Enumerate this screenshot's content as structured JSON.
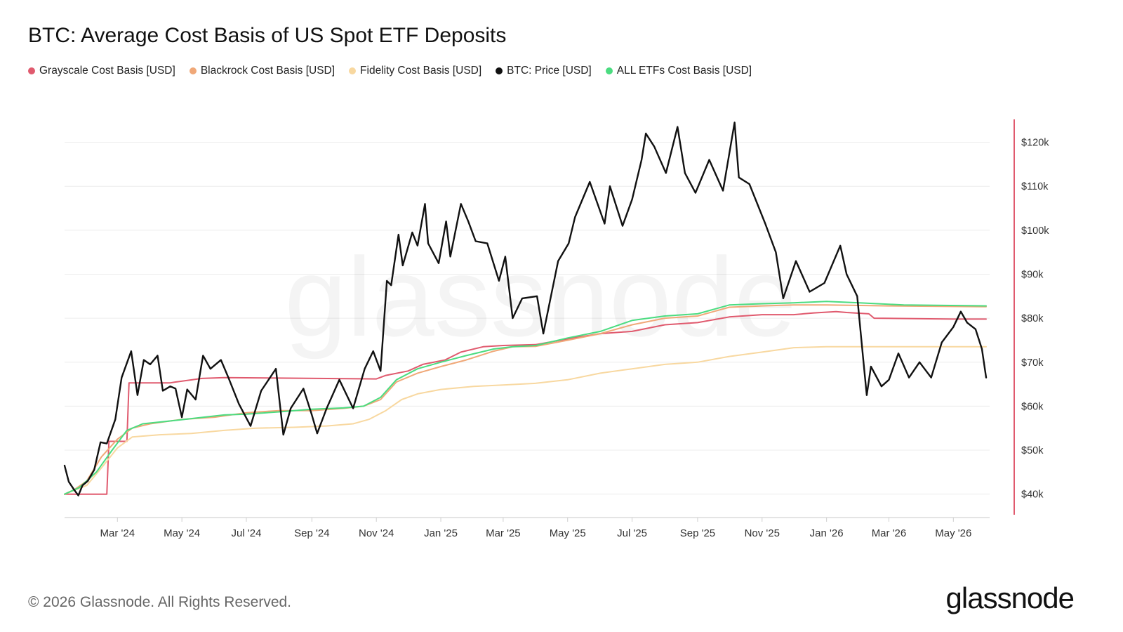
{
  "title": "BTC: Average Cost Basis of US Spot ETF Deposits",
  "footer": "© 2026 Glassnode. All Rights Reserved.",
  "logo": "glassnode",
  "watermark": "glassnode",
  "legend": [
    {
      "label": "Grayscale Cost Basis [USD]",
      "color": "#e05a6e"
    },
    {
      "label": "Blackrock Cost Basis [USD]",
      "color": "#f0a878"
    },
    {
      "label": "Fidelity Cost Basis [USD]",
      "color": "#f8d8a0"
    },
    {
      "label": "BTC: Price [USD]",
      "color": "#111111"
    },
    {
      "label": "ALL ETFs Cost Basis [USD]",
      "color": "#4bdc80"
    }
  ],
  "chart_data": {
    "type": "line",
    "x_range": [
      "2024-01-11",
      "2026-06-01"
    ],
    "x_ticks": [
      {
        "date": "2024-03-01",
        "label": "Mar '24"
      },
      {
        "date": "2024-05-01",
        "label": "May '24"
      },
      {
        "date": "2024-07-01",
        "label": "Jul '24"
      },
      {
        "date": "2024-09-01",
        "label": "Sep '24"
      },
      {
        "date": "2024-11-01",
        "label": "Nov '24"
      },
      {
        "date": "2025-01-01",
        "label": "Jan '25"
      },
      {
        "date": "2025-03-01",
        "label": "Mar '25"
      },
      {
        "date": "2025-05-01",
        "label": "May '25"
      },
      {
        "date": "2025-07-01",
        "label": "Jul '25"
      },
      {
        "date": "2025-09-01",
        "label": "Sep '25"
      },
      {
        "date": "2025-11-01",
        "label": "Nov '25"
      },
      {
        "date": "2026-01-01",
        "label": "Jan '26"
      },
      {
        "date": "2026-03-01",
        "label": "Mar '26"
      },
      {
        "date": "2026-05-01",
        "label": "May '26"
      }
    ],
    "y_ticks": [
      {
        "value": 40000,
        "label": "$40k"
      },
      {
        "value": 50000,
        "label": "$50k"
      },
      {
        "value": 60000,
        "label": "$60k"
      },
      {
        "value": 70000,
        "label": "$70k"
      },
      {
        "value": 80000,
        "label": "$80k"
      },
      {
        "value": 90000,
        "label": "$90k"
      },
      {
        "value": 100000,
        "label": "$100k"
      },
      {
        "value": 110000,
        "label": "$110k"
      },
      {
        "value": 120000,
        "label": "$120k"
      }
    ],
    "ylim": [
      35000,
      126000
    ],
    "y_axis_side": "right",
    "grid": "horizontal",
    "series": [
      {
        "name": "Grayscale Cost Basis [USD]",
        "color": "#e05a6e",
        "points": [
          [
            "2024-01-11",
            40000
          ],
          [
            "2024-02-20",
            40000
          ],
          [
            "2024-02-22",
            52000
          ],
          [
            "2024-03-10",
            52000
          ],
          [
            "2024-03-12",
            65300
          ],
          [
            "2024-04-20",
            65300
          ],
          [
            "2024-04-25",
            65500
          ],
          [
            "2024-05-20",
            66300
          ],
          [
            "2024-06-10",
            66500
          ],
          [
            "2024-11-01",
            66200
          ],
          [
            "2024-11-10",
            67000
          ],
          [
            "2024-12-01",
            68000
          ],
          [
            "2024-12-15",
            69500
          ],
          [
            "2025-01-05",
            70500
          ],
          [
            "2025-01-20",
            72300
          ],
          [
            "2025-02-10",
            73500
          ],
          [
            "2025-03-01",
            73800
          ],
          [
            "2025-04-01",
            74000
          ],
          [
            "2025-05-01",
            75300
          ],
          [
            "2025-06-01",
            76500
          ],
          [
            "2025-07-01",
            77000
          ],
          [
            "2025-08-01",
            78500
          ],
          [
            "2025-09-01",
            79000
          ],
          [
            "2025-10-01",
            80300
          ],
          [
            "2025-11-01",
            80800
          ],
          [
            "2025-12-01",
            80800
          ],
          [
            "2025-12-20",
            81200
          ],
          [
            "2026-01-10",
            81500
          ],
          [
            "2026-01-20",
            81300
          ],
          [
            "2026-02-10",
            81000
          ],
          [
            "2026-02-15",
            80000
          ],
          [
            "2026-05-01",
            79800
          ],
          [
            "2026-06-01",
            79800
          ]
        ]
      },
      {
        "name": "Blackrock Cost Basis [USD]",
        "color": "#f0a878",
        "points": [
          [
            "2024-01-11",
            40000
          ],
          [
            "2024-01-20",
            41000
          ],
          [
            "2024-02-01",
            43000
          ],
          [
            "2024-02-15",
            48500
          ],
          [
            "2024-03-01",
            52500
          ],
          [
            "2024-03-15",
            55000
          ],
          [
            "2024-04-01",
            56000
          ],
          [
            "2024-05-01",
            57000
          ],
          [
            "2024-06-01",
            57500
          ],
          [
            "2024-07-01",
            58500
          ],
          [
            "2024-08-01",
            59000
          ],
          [
            "2024-09-01",
            59000
          ],
          [
            "2024-10-01",
            59500
          ],
          [
            "2024-10-20",
            60000
          ],
          [
            "2024-11-05",
            61500
          ],
          [
            "2024-11-20",
            65500
          ],
          [
            "2024-12-10",
            67500
          ],
          [
            "2025-01-01",
            69000
          ],
          [
            "2025-01-25",
            70500
          ],
          [
            "2025-02-20",
            72500
          ],
          [
            "2025-03-10",
            73500
          ],
          [
            "2025-04-01",
            73600
          ],
          [
            "2025-05-01",
            75000
          ],
          [
            "2025-06-01",
            76500
          ],
          [
            "2025-07-01",
            78500
          ],
          [
            "2025-08-01",
            80000
          ],
          [
            "2025-09-01",
            80500
          ],
          [
            "2025-10-01",
            82500
          ],
          [
            "2025-11-01",
            82800
          ],
          [
            "2025-12-01",
            83000
          ],
          [
            "2026-01-01",
            83000
          ],
          [
            "2026-03-01",
            82800
          ],
          [
            "2026-06-01",
            82600
          ]
        ]
      },
      {
        "name": "Fidelity Cost Basis [USD]",
        "color": "#f8d8a0",
        "points": [
          [
            "2024-01-11",
            40000
          ],
          [
            "2024-02-01",
            42000
          ],
          [
            "2024-02-15",
            46000
          ],
          [
            "2024-03-01",
            50500
          ],
          [
            "2024-03-15",
            53000
          ],
          [
            "2024-04-10",
            53500
          ],
          [
            "2024-05-10",
            53800
          ],
          [
            "2024-06-10",
            54500
          ],
          [
            "2024-07-10",
            55000
          ],
          [
            "2024-08-15",
            55200
          ],
          [
            "2024-09-15",
            55500
          ],
          [
            "2024-10-10",
            56000
          ],
          [
            "2024-10-25",
            57000
          ],
          [
            "2024-11-10",
            59000
          ],
          [
            "2024-11-25",
            61500
          ],
          [
            "2024-12-10",
            62800
          ],
          [
            "2025-01-01",
            63800
          ],
          [
            "2025-02-01",
            64500
          ],
          [
            "2025-03-01",
            64800
          ],
          [
            "2025-04-01",
            65200
          ],
          [
            "2025-05-01",
            66000
          ],
          [
            "2025-06-01",
            67500
          ],
          [
            "2025-07-01",
            68500
          ],
          [
            "2025-08-01",
            69500
          ],
          [
            "2025-09-01",
            70000
          ],
          [
            "2025-10-01",
            71300
          ],
          [
            "2025-11-01",
            72300
          ],
          [
            "2025-12-01",
            73300
          ],
          [
            "2026-01-01",
            73500
          ],
          [
            "2026-03-01",
            73500
          ],
          [
            "2026-06-01",
            73500
          ]
        ]
      },
      {
        "name": "ALL ETFs Cost Basis [USD]",
        "color": "#4bdc80",
        "points": [
          [
            "2024-01-11",
            40000
          ],
          [
            "2024-01-25",
            41500
          ],
          [
            "2024-02-10",
            45000
          ],
          [
            "2024-02-25",
            50000
          ],
          [
            "2024-03-10",
            54500
          ],
          [
            "2024-03-25",
            56000
          ],
          [
            "2024-04-15",
            56500
          ],
          [
            "2024-05-15",
            57300
          ],
          [
            "2024-06-10",
            58000
          ],
          [
            "2024-07-01",
            58200
          ],
          [
            "2024-08-01",
            58700
          ],
          [
            "2024-09-01",
            59300
          ],
          [
            "2024-10-01",
            59600
          ],
          [
            "2024-10-20",
            60000
          ],
          [
            "2024-11-05",
            62000
          ],
          [
            "2024-11-20",
            66000
          ],
          [
            "2024-12-10",
            68500
          ],
          [
            "2025-01-01",
            70000
          ],
          [
            "2025-01-25",
            71500
          ],
          [
            "2025-02-20",
            73000
          ],
          [
            "2025-03-10",
            73500
          ],
          [
            "2025-04-01",
            73800
          ],
          [
            "2025-05-01",
            75500
          ],
          [
            "2025-06-01",
            77000
          ],
          [
            "2025-07-01",
            79500
          ],
          [
            "2025-08-01",
            80500
          ],
          [
            "2025-09-01",
            81000
          ],
          [
            "2025-10-01",
            83000
          ],
          [
            "2025-11-01",
            83300
          ],
          [
            "2025-12-01",
            83500
          ],
          [
            "2026-01-01",
            83800
          ],
          [
            "2026-02-01",
            83500
          ],
          [
            "2026-03-15",
            83000
          ],
          [
            "2026-06-01",
            82800
          ]
        ]
      },
      {
        "name": "BTC: Price [USD]",
        "color": "#111111",
        "points": [
          [
            "2024-01-11",
            46500
          ],
          [
            "2024-01-15",
            42800
          ],
          [
            "2024-01-20",
            41000
          ],
          [
            "2024-01-24",
            39700
          ],
          [
            "2024-01-28",
            42000
          ],
          [
            "2024-02-02",
            43000
          ],
          [
            "2024-02-08",
            45500
          ],
          [
            "2024-02-14",
            51800
          ],
          [
            "2024-02-20",
            51500
          ],
          [
            "2024-02-28",
            57000
          ],
          [
            "2024-03-05",
            66500
          ],
          [
            "2024-03-14",
            72500
          ],
          [
            "2024-03-20",
            62500
          ],
          [
            "2024-03-26",
            70500
          ],
          [
            "2024-04-01",
            69500
          ],
          [
            "2024-04-08",
            71500
          ],
          [
            "2024-04-13",
            63500
          ],
          [
            "2024-04-20",
            64500
          ],
          [
            "2024-04-25",
            64000
          ],
          [
            "2024-05-01",
            57500
          ],
          [
            "2024-05-06",
            63800
          ],
          [
            "2024-05-14",
            61500
          ],
          [
            "2024-05-21",
            71500
          ],
          [
            "2024-05-28",
            68500
          ],
          [
            "2024-06-07",
            70500
          ],
          [
            "2024-06-14",
            66500
          ],
          [
            "2024-06-24",
            60500
          ],
          [
            "2024-07-05",
            55500
          ],
          [
            "2024-07-15",
            63500
          ],
          [
            "2024-07-29",
            68500
          ],
          [
            "2024-08-05",
            53500
          ],
          [
            "2024-08-12",
            59500
          ],
          [
            "2024-08-24",
            64000
          ],
          [
            "2024-09-01",
            58000
          ],
          [
            "2024-09-06",
            53800
          ],
          [
            "2024-09-15",
            59500
          ],
          [
            "2024-09-27",
            66000
          ],
          [
            "2024-10-10",
            59500
          ],
          [
            "2024-10-21",
            68500
          ],
          [
            "2024-10-29",
            72500
          ],
          [
            "2024-11-05",
            68000
          ],
          [
            "2024-11-11",
            88500
          ],
          [
            "2024-11-15",
            87500
          ],
          [
            "2024-11-22",
            99000
          ],
          [
            "2024-11-26",
            92000
          ],
          [
            "2024-12-05",
            99500
          ],
          [
            "2024-12-10",
            96500
          ],
          [
            "2024-12-17",
            106000
          ],
          [
            "2024-12-20",
            97000
          ],
          [
            "2024-12-30",
            92500
          ],
          [
            "2025-01-06",
            102000
          ],
          [
            "2025-01-10",
            94000
          ],
          [
            "2025-01-20",
            106000
          ],
          [
            "2025-01-27",
            102000
          ],
          [
            "2025-02-03",
            97500
          ],
          [
            "2025-02-14",
            97000
          ],
          [
            "2025-02-25",
            88500
          ],
          [
            "2025-03-03",
            94000
          ],
          [
            "2025-03-10",
            80000
          ],
          [
            "2025-03-19",
            84500
          ],
          [
            "2025-04-02",
            85000
          ],
          [
            "2025-04-08",
            76500
          ],
          [
            "2025-04-22",
            93000
          ],
          [
            "2025-05-02",
            97000
          ],
          [
            "2025-05-08",
            103000
          ],
          [
            "2025-05-22",
            111000
          ],
          [
            "2025-06-05",
            101500
          ],
          [
            "2025-06-10",
            110000
          ],
          [
            "2025-06-22",
            101000
          ],
          [
            "2025-07-01",
            107000
          ],
          [
            "2025-07-10",
            116000
          ],
          [
            "2025-07-14",
            122000
          ],
          [
            "2025-07-22",
            119000
          ],
          [
            "2025-08-02",
            113000
          ],
          [
            "2025-08-13",
            123500
          ],
          [
            "2025-08-20",
            113000
          ],
          [
            "2025-08-30",
            108500
          ],
          [
            "2025-09-12",
            116000
          ],
          [
            "2025-09-25",
            109000
          ],
          [
            "2025-10-06",
            124500
          ],
          [
            "2025-10-10",
            112000
          ],
          [
            "2025-10-20",
            110500
          ],
          [
            "2025-11-04",
            101500
          ],
          [
            "2025-11-14",
            95000
          ],
          [
            "2025-11-21",
            84500
          ],
          [
            "2025-12-03",
            93000
          ],
          [
            "2025-12-16",
            86000
          ],
          [
            "2025-12-30",
            88000
          ],
          [
            "2026-01-14",
            96500
          ],
          [
            "2026-01-20",
            90000
          ],
          [
            "2026-01-30",
            85000
          ],
          [
            "2026-02-05",
            70000
          ],
          [
            "2026-02-08",
            62500
          ],
          [
            "2026-02-12",
            69000
          ],
          [
            "2026-02-22",
            64500
          ],
          [
            "2026-03-01",
            66000
          ],
          [
            "2026-03-10",
            72000
          ],
          [
            "2026-03-20",
            66500
          ],
          [
            "2026-03-30",
            70000
          ],
          [
            "2026-04-10",
            66500
          ],
          [
            "2026-04-20",
            74500
          ],
          [
            "2026-05-01",
            78000
          ],
          [
            "2026-05-08",
            81500
          ],
          [
            "2026-05-14",
            79000
          ],
          [
            "2026-05-22",
            77500
          ],
          [
            "2026-05-28",
            73000
          ],
          [
            "2026-06-01",
            66500
          ]
        ]
      }
    ]
  }
}
